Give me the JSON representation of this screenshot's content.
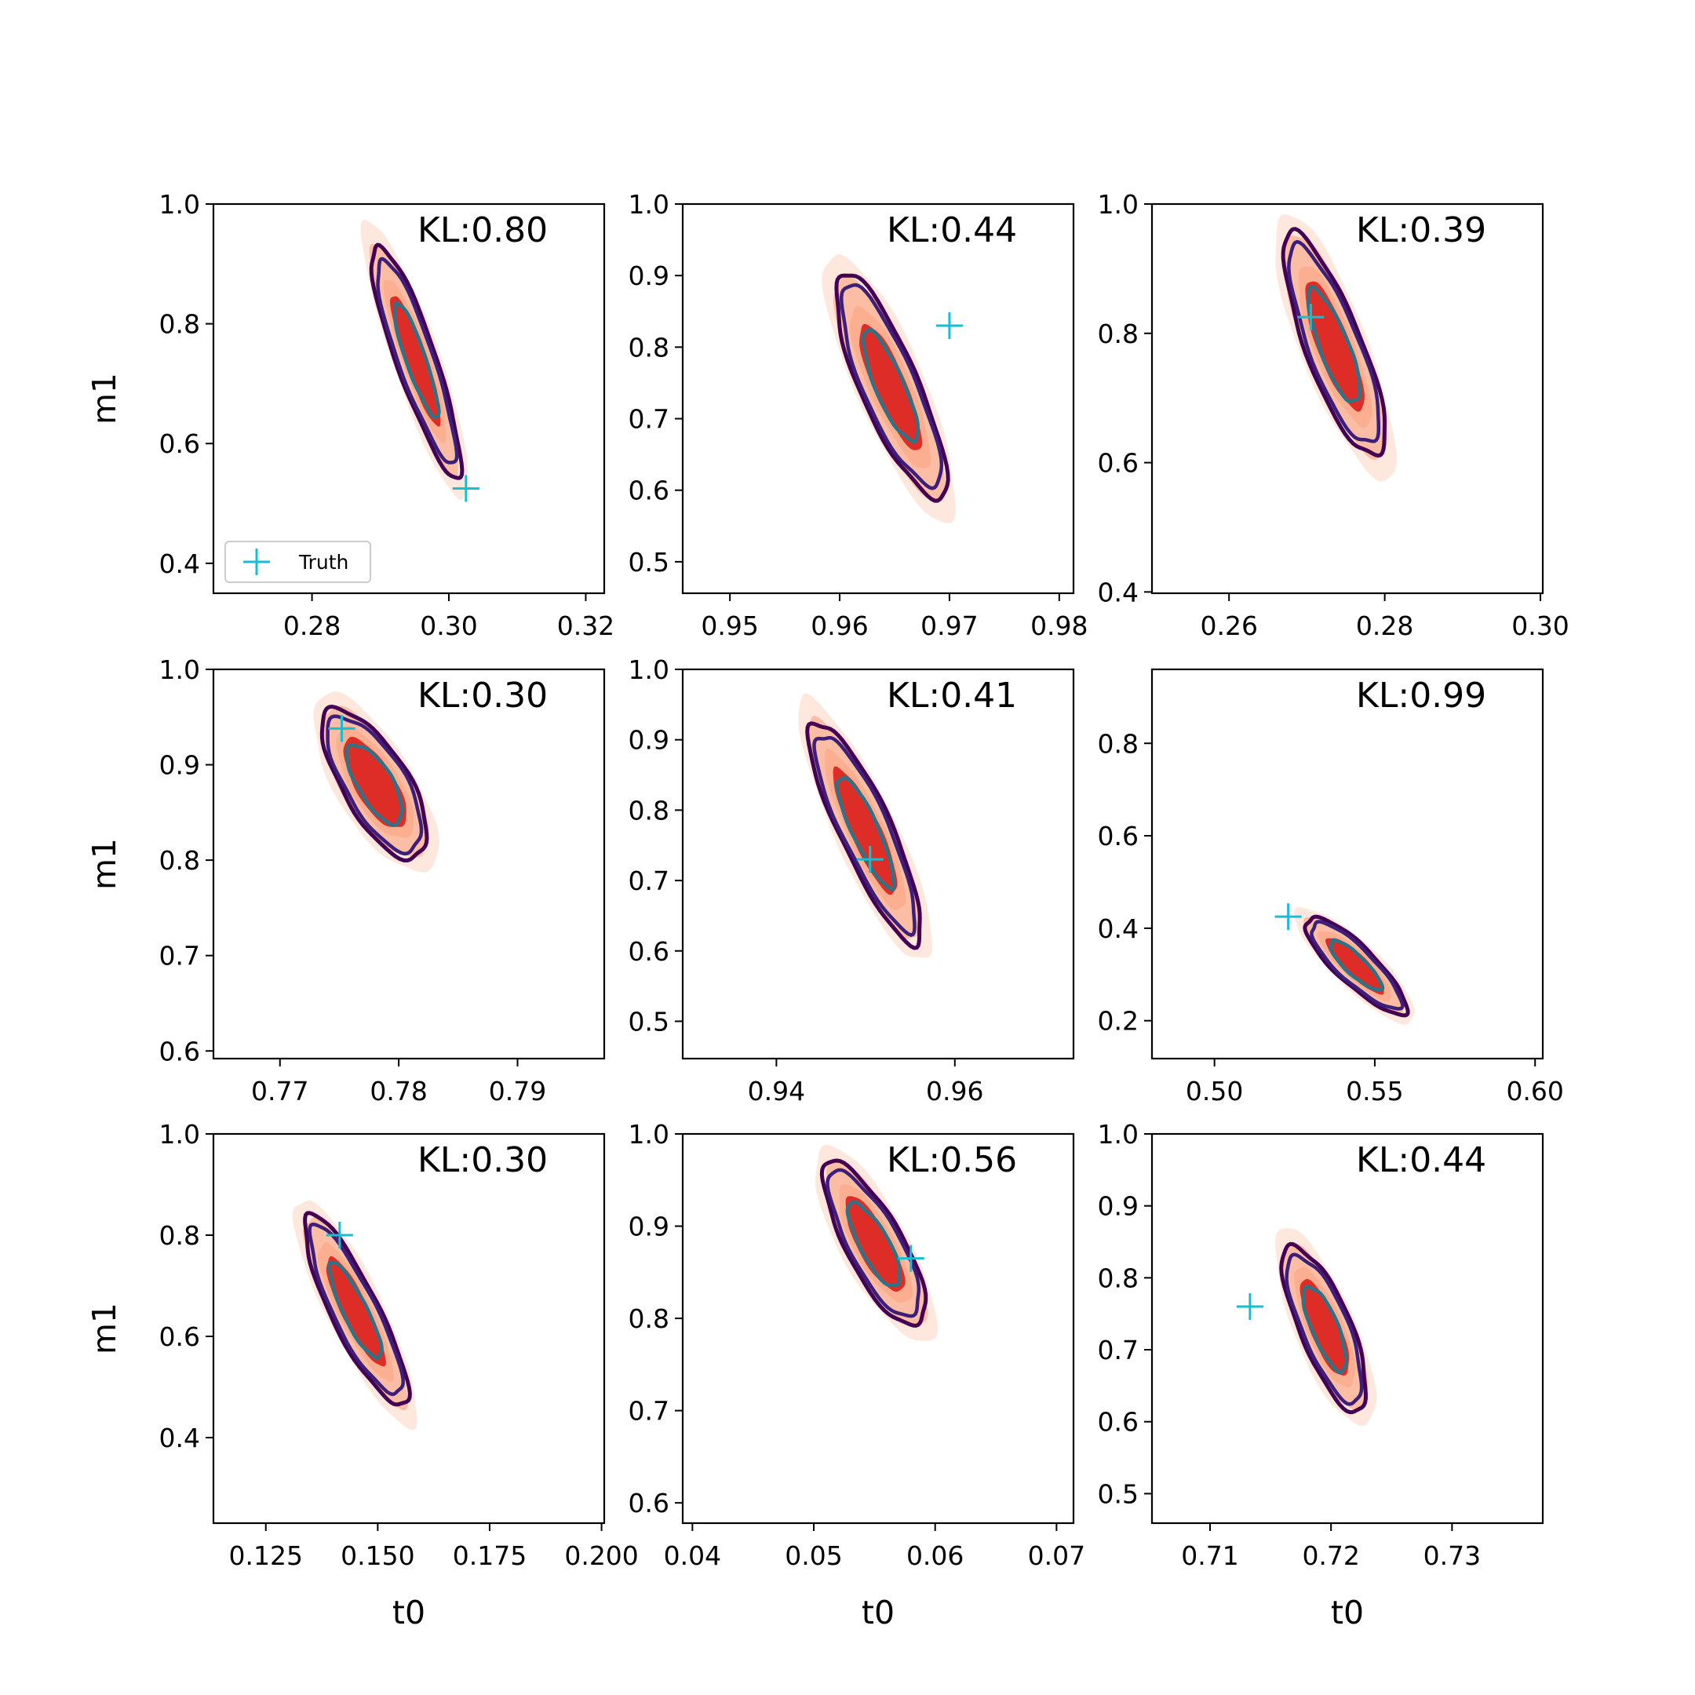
{
  "figure": {
    "xlabel": "t0",
    "ylabel": "m1"
  },
  "legend": {
    "label": "Truth",
    "marker_color": "#17becf"
  },
  "colors": {
    "truth": "#17becf",
    "contour_dark": "#440154",
    "contour_mid": "#3b1f7a",
    "contour_teal": "#2c7387",
    "fill_pale": "#fee5d9",
    "fill_light": "#fcae91",
    "fill_dark": "#de2d26"
  },
  "chart_data": [
    {
      "type": "contour",
      "title": "",
      "xlabel": "",
      "ylabel": "m1",
      "annotation": "KL:0.80",
      "xlim": [
        0.2656,
        0.3227
      ],
      "ylim": [
        0.35,
        1.0
      ],
      "xticks": [
        0.28,
        0.3,
        0.32
      ],
      "xtick_labels": [
        "0.28",
        "0.30",
        "0.32"
      ],
      "yticks": [
        0.4,
        0.6,
        0.8,
        1.0
      ],
      "ytick_labels": [
        "0.4",
        "0.6",
        "0.8",
        "1.0"
      ],
      "truth": {
        "x": 0.3025,
        "y": 0.525
      },
      "posterior": {
        "center": [
          0.2952,
          0.74
        ],
        "sx": 0.0062,
        "sy": 0.185,
        "rho": -0.88,
        "scales": [
          1.25,
          1.05,
          0.92,
          0.7,
          0.56,
          0.4
        ]
      }
    },
    {
      "type": "contour",
      "title": "",
      "xlabel": "",
      "ylabel": "",
      "annotation": "KL:0.44",
      "xlim": [
        0.9457,
        0.9813
      ],
      "ylim": [
        0.456,
        1.0
      ],
      "xticks": [
        0.95,
        0.96,
        0.97,
        0.98
      ],
      "xtick_labels": [
        "0.95",
        "0.96",
        "0.97",
        "0.98"
      ],
      "yticks": [
        0.5,
        0.6,
        0.7,
        0.8,
        0.9,
        1.0
      ],
      "ytick_labels": [
        "0.5",
        "0.6",
        "0.7",
        "0.8",
        "0.9",
        "1.0"
      ],
      "truth": {
        "x": 0.97,
        "y": 0.83
      },
      "posterior": {
        "center": [
          0.9646,
          0.745
        ],
        "sx": 0.0048,
        "sy": 0.15,
        "rho": -0.82,
        "scales": [
          1.25,
          1.05,
          0.94,
          0.72,
          0.56,
          0.42
        ]
      }
    },
    {
      "type": "contour",
      "title": "",
      "xlabel": "",
      "ylabel": "",
      "annotation": "KL:0.39",
      "xlim": [
        0.2501,
        0.3003
      ],
      "ylim": [
        0.398,
        1.0
      ],
      "xticks": [
        0.26,
        0.28,
        0.3
      ],
      "xtick_labels": [
        "0.26",
        "0.28",
        "0.30"
      ],
      "yticks": [
        0.4,
        0.6,
        0.8,
        1.0
      ],
      "ytick_labels": [
        "0.4",
        "0.6",
        "0.8",
        "1.0"
      ],
      "truth": {
        "x": 0.2705,
        "y": 0.825
      },
      "posterior": {
        "center": [
          0.2735,
          0.78
        ],
        "sx": 0.0062,
        "sy": 0.165,
        "rho": -0.8,
        "scales": [
          1.25,
          1.05,
          0.93,
          0.72,
          0.58,
          0.44
        ]
      }
    },
    {
      "type": "contour",
      "title": "",
      "xlabel": "",
      "ylabel": "m1",
      "annotation": "KL:0.30",
      "xlim": [
        0.7644,
        0.7973
      ],
      "ylim": [
        0.592,
        1.0
      ],
      "xticks": [
        0.77,
        0.78,
        0.79
      ],
      "xtick_labels": [
        "0.77",
        "0.78",
        "0.79"
      ],
      "yticks": [
        0.6,
        0.7,
        0.8,
        0.9,
        1.0
      ],
      "ytick_labels": [
        "0.6",
        "0.7",
        "0.8",
        "0.9",
        "1.0"
      ],
      "truth": {
        "x": 0.7752,
        "y": 0.938
      },
      "posterior": {
        "center": [
          0.778,
          0.88
        ],
        "sx": 0.0042,
        "sy": 0.075,
        "rho": -0.7,
        "scales": [
          1.25,
          1.05,
          0.94,
          0.74,
          0.6,
          0.46
        ]
      }
    },
    {
      "type": "contour",
      "title": "",
      "xlabel": "",
      "ylabel": "",
      "annotation": "KL:0.41",
      "xlim": [
        0.9295,
        0.9733
      ],
      "ylim": [
        0.447,
        1.0
      ],
      "xticks": [
        0.94,
        0.96
      ],
      "xtick_labels": [
        "0.94",
        "0.96"
      ],
      "yticks": [
        0.5,
        0.6,
        0.7,
        0.8,
        0.9,
        1.0
      ],
      "ytick_labels": [
        "0.5",
        "0.6",
        "0.7",
        "0.8",
        "0.9",
        "1.0"
      ],
      "truth": {
        "x": 0.9505,
        "y": 0.73
      },
      "posterior": {
        "center": [
          0.95,
          0.77
        ],
        "sx": 0.006,
        "sy": 0.15,
        "rho": -0.86,
        "scales": [
          1.25,
          1.05,
          0.93,
          0.72,
          0.57,
          0.42
        ]
      }
    },
    {
      "type": "contour",
      "title": "",
      "xlabel": "",
      "ylabel": "",
      "annotation": "KL:0.99",
      "xlim": [
        0.4805,
        0.6024
      ],
      "ylim": [
        0.118,
        0.96
      ],
      "xticks": [
        0.5,
        0.55,
        0.6
      ],
      "xtick_labels": [
        "0.50",
        "0.55",
        "0.60"
      ],
      "yticks": [
        0.2,
        0.4,
        0.6,
        0.8
      ],
      "ytick_labels": [
        "0.2",
        "0.4",
        "0.6",
        "0.8"
      ],
      "truth": {
        "x": 0.523,
        "y": 0.425
      },
      "posterior": {
        "center": [
          0.544,
          0.32
        ],
        "sx": 0.015,
        "sy": 0.1,
        "rho": -0.85,
        "scales": [
          1.25,
          1.05,
          0.93,
          0.72,
          0.58,
          0.44
        ]
      }
    },
    {
      "type": "contour",
      "title": "",
      "xlabel": "t0",
      "ylabel": "m1",
      "annotation": "KL:0.30",
      "xlim": [
        0.1133,
        0.2006
      ],
      "ylim": [
        0.231,
        1.0
      ],
      "xticks": [
        0.125,
        0.15,
        0.175,
        0.2
      ],
      "xtick_labels": [
        "0.125",
        "0.150",
        "0.175",
        "0.200"
      ],
      "yticks": [
        0.4,
        0.6,
        0.8,
        1.0
      ],
      "ytick_labels": [
        "0.4",
        "0.6",
        "0.8",
        "1.0"
      ],
      "truth": {
        "x": 0.1415,
        "y": 0.8
      },
      "posterior": {
        "center": [
          0.145,
          0.65
        ],
        "sx": 0.011,
        "sy": 0.18,
        "rho": -0.86,
        "scales": [
          1.25,
          1.05,
          0.93,
          0.72,
          0.57,
          0.42
        ]
      }
    },
    {
      "type": "contour",
      "title": "",
      "xlabel": "t0",
      "ylabel": "",
      "annotation": "KL:0.56",
      "xlim": [
        0.0392,
        0.0714
      ],
      "ylim": [
        0.578,
        1.0
      ],
      "xticks": [
        0.04,
        0.05,
        0.06,
        0.07
      ],
      "xtick_labels": [
        "0.04",
        "0.05",
        "0.06",
        "0.07"
      ],
      "yticks": [
        0.6,
        0.7,
        0.8,
        0.9,
        1.0
      ],
      "ytick_labels": [
        "0.6",
        "0.7",
        "0.8",
        "0.9",
        "1.0"
      ],
      "truth": {
        "x": 0.058,
        "y": 0.865
      },
      "posterior": {
        "center": [
          0.055,
          0.88
        ],
        "sx": 0.004,
        "sy": 0.085,
        "rho": -0.78,
        "scales": [
          1.25,
          1.05,
          0.93,
          0.72,
          0.58,
          0.44
        ]
      }
    },
    {
      "type": "contour",
      "title": "",
      "xlabel": "t0",
      "ylabel": "",
      "annotation": "KL:0.44",
      "xlim": [
        0.7052,
        0.7375
      ],
      "ylim": [
        0.459,
        1.0
      ],
      "xticks": [
        0.71,
        0.72,
        0.73
      ],
      "xtick_labels": [
        "0.71",
        "0.72",
        "0.73"
      ],
      "yticks": [
        0.5,
        0.6,
        0.7,
        0.8,
        0.9,
        1.0
      ],
      "ytick_labels": [
        "0.5",
        "0.6",
        "0.7",
        "0.8",
        "0.9",
        "1.0"
      ],
      "truth": {
        "x": 0.7133,
        "y": 0.76
      },
      "posterior": {
        "center": [
          0.7195,
          0.73
        ],
        "sx": 0.0033,
        "sy": 0.11,
        "rho": -0.75,
        "scales": [
          1.25,
          1.05,
          0.93,
          0.72,
          0.58,
          0.44
        ]
      }
    }
  ]
}
